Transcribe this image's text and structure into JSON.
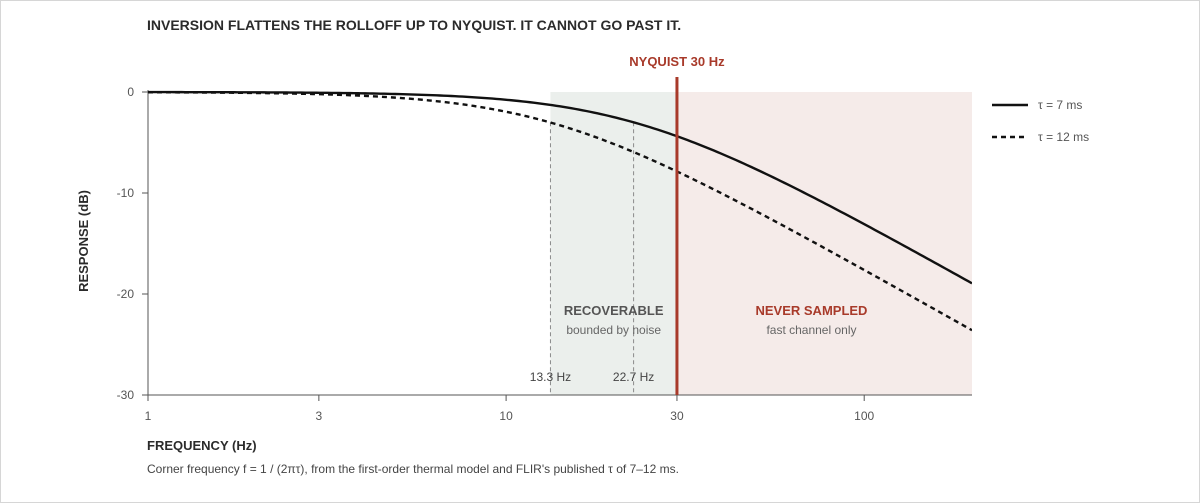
{
  "chart_data": {
    "type": "line",
    "title": "INVERSION FLATTENS THE ROLLOFF UP TO NYQUIST. IT CANNOT GO PAST IT.",
    "xlabel": "FREQUENCY (Hz)",
    "ylabel": "RESPONSE (dB)",
    "x_scale": "log",
    "xlim": [
      1,
      200
    ],
    "ylim": [
      -30,
      0
    ],
    "x_ticks": [
      {
        "value": 1,
        "label": "1"
      },
      {
        "value": 3,
        "label": "3"
      },
      {
        "value": 10,
        "label": "10"
      },
      {
        "value": 30,
        "label": "30"
      },
      {
        "value": 100,
        "label": "100"
      }
    ],
    "y_ticks": [
      {
        "value": 0,
        "label": "0"
      },
      {
        "value": -10,
        "label": "-10"
      },
      {
        "value": -20,
        "label": "-20"
      },
      {
        "value": -30,
        "label": "-30"
      }
    ],
    "grid": false,
    "legend_position": "right",
    "series": [
      {
        "name": "τ = 7 ms",
        "style": "solid",
        "tau_ms": 7,
        "x": [
          1,
          2,
          3,
          5,
          7,
          10,
          13.3,
          15,
          20,
          22.7,
          30,
          40,
          50,
          70,
          100,
          150,
          200
        ],
        "y": [
          -0.01,
          -0.03,
          -0.07,
          -0.19,
          -0.36,
          -0.71,
          -1.21,
          -1.5,
          -2.45,
          -3.04,
          -4.56,
          -6.72,
          -8.67,
          -11.93,
          -15.34,
          -18.97,
          -21.46
        ]
      },
      {
        "name": "τ = 12 ms",
        "style": "dashed",
        "tau_ms": 12,
        "x": [
          1,
          2,
          3,
          5,
          7,
          10,
          13.3,
          15,
          20,
          22.7,
          30,
          40,
          50,
          70,
          100,
          150,
          200
        ],
        "y": [
          -0.02,
          -0.1,
          -0.22,
          -0.58,
          -1.06,
          -1.96,
          -3.01,
          -3.52,
          -5.15,
          -6.01,
          -8.04,
          -10.47,
          -12.43,
          -15.14,
          -18.36,
          -21.81,
          -24.26
        ]
      }
    ],
    "nyquist": {
      "value": 30,
      "label": "NYQUIST 30 Hz",
      "color": "#a83a2a"
    },
    "regions": [
      {
        "name": "RECOVERABLE",
        "sublabel": "bounded by noise",
        "x_from": 13.3,
        "x_to": 30,
        "fill": "#ebefec",
        "title_color": "#555555"
      },
      {
        "name": "NEVER SAMPLED",
        "sublabel": "fast channel only",
        "x_from": 30,
        "x_to": 200,
        "fill": "#f5ebe9",
        "title_color": "#a83a2a"
      }
    ],
    "corner_markers": [
      {
        "value": 13.3,
        "label": "13.3 Hz"
      },
      {
        "value": 22.7,
        "label": "22.7 Hz"
      }
    ],
    "caption": "Corner frequency f = 1 / (2πτ), from the first-order thermal model and FLIR's published τ of 7–12 ms.",
    "line_color": "#111111"
  }
}
